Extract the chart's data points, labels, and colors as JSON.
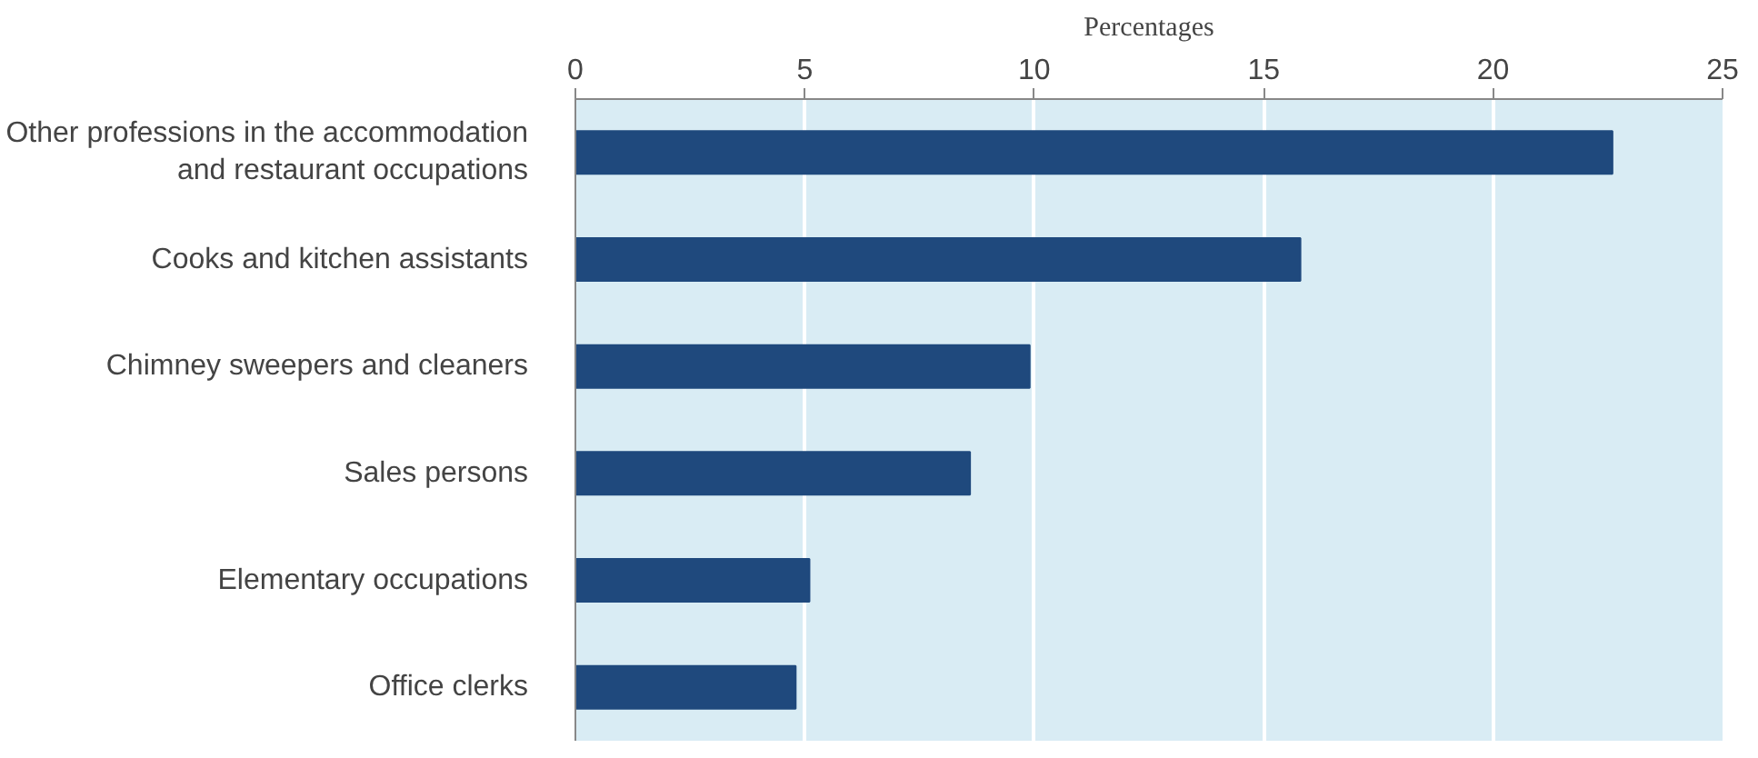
{
  "chart_data": {
    "type": "bar",
    "orientation": "horizontal",
    "title": "Percentages",
    "categories": [
      "Other professions in the accommodation\nand restaurant occupations",
      "Cooks and kitchen assistants",
      "Chimney sweepers and cleaners",
      "Sales persons",
      "Elementary occupations",
      "Office clerks"
    ],
    "values": [
      22.6,
      15.8,
      9.9,
      8.6,
      5.1,
      4.8
    ],
    "color": "#1f497d",
    "xlim": [
      0,
      25
    ],
    "xticks": [
      0,
      5,
      10,
      15,
      20,
      25
    ],
    "grid": "x"
  }
}
